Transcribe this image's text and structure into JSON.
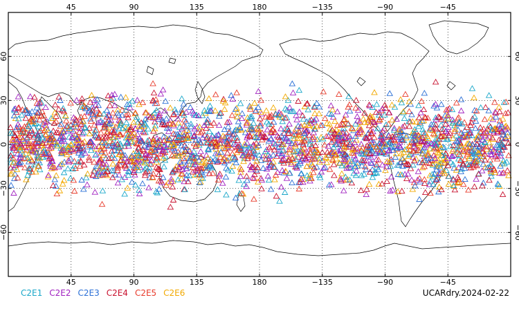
{
  "map": {
    "top_lon_labels": [
      "45",
      "90",
      "135",
      "180",
      "−135",
      "−90",
      "−45"
    ],
    "bottom_lon_labels": [
      "45",
      "90",
      "135",
      "180",
      "−135",
      "−90",
      "−45"
    ],
    "lat_labels": [
      "60",
      "30",
      "0",
      "−30",
      "−60"
    ],
    "lon_ticks_deg": [
      45,
      90,
      135,
      180,
      225,
      270,
      315
    ],
    "lat_ticks_deg": [
      60,
      30,
      0,
      -30,
      -60
    ],
    "lon_range": [
      0,
      360
    ],
    "lat_range": [
      -90,
      90
    ],
    "grid": "dotted",
    "symbol": "open-triangle",
    "density_band_lat": [
      -45,
      45
    ]
  },
  "legend": {
    "items": [
      {
        "label": "C2E1",
        "color": "#1aa7c9"
      },
      {
        "label": "C2E2",
        "color": "#a020c0"
      },
      {
        "label": "C2E3",
        "color": "#2a6fd6"
      },
      {
        "label": "C2E4",
        "color": "#c8102e"
      },
      {
        "label": "C2E5",
        "color": "#e83a2a"
      },
      {
        "label": "C2E6",
        "color": "#f2a900"
      }
    ]
  },
  "stamp": "UCARdry.2024-02-22"
}
